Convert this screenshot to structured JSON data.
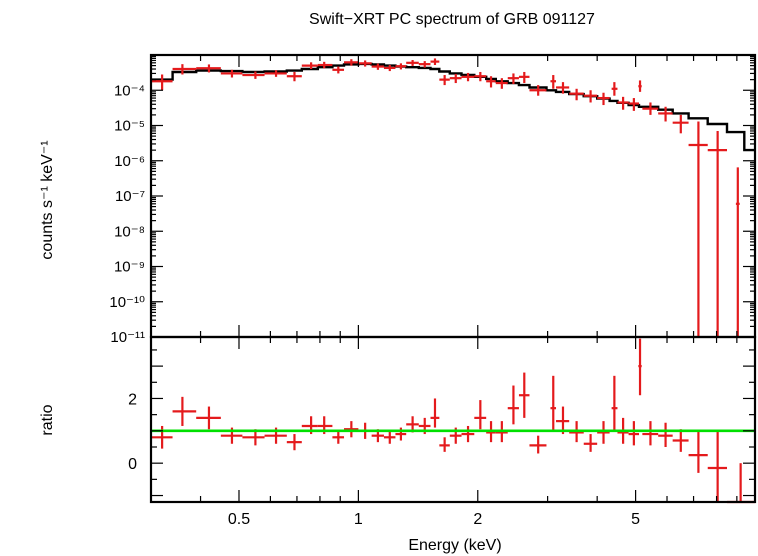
{
  "chart_data": [
    {
      "type": "scatter",
      "title": "Swift−XRT PC spectrum of GRB 091127",
      "ylabel": "counts s⁻¹ keV⁻¹",
      "xlabel": "",
      "x_scale": "log",
      "y_scale": "log",
      "xlim": [
        0.3,
        10.0
      ],
      "ylim": [
        1e-11,
        0.001
      ],
      "grid": false,
      "y_tick_labels": [
        "10⁻¹¹",
        "10⁻¹⁰",
        "10⁻⁹",
        "10⁻⁸",
        "10⁻⁷",
        "10⁻⁶",
        "10⁻⁵",
        "10⁻⁴"
      ],
      "colors": {
        "data": "#e41a1c",
        "model": "#000000"
      },
      "series": [
        {
          "points": [
            {
              "x": 0.32,
              "xlo": 0.3,
              "xhi": 0.34,
              "y": 0.00018,
              "ylo": 0.0001,
              "yhi": 0.00028
            },
            {
              "x": 0.36,
              "xlo": 0.34,
              "xhi": 0.39,
              "y": 0.0004,
              "ylo": 0.00028,
              "yhi": 0.00055
            },
            {
              "x": 0.42,
              "xlo": 0.39,
              "xhi": 0.45,
              "y": 0.00042,
              "ylo": 0.00032,
              "yhi": 0.00054
            },
            {
              "x": 0.48,
              "xlo": 0.45,
              "xhi": 0.51,
              "y": 0.0003,
              "ylo": 0.00023,
              "yhi": 0.00038
            },
            {
              "x": 0.55,
              "xlo": 0.51,
              "xhi": 0.58,
              "y": 0.00027,
              "ylo": 0.00021,
              "yhi": 0.00034
            },
            {
              "x": 0.62,
              "xlo": 0.58,
              "xhi": 0.66,
              "y": 0.0003,
              "ylo": 0.00024,
              "yhi": 0.00037
            },
            {
              "x": 0.69,
              "xlo": 0.66,
              "xhi": 0.72,
              "y": 0.00025,
              "ylo": 0.00018,
              "yhi": 0.00033
            },
            {
              "x": 0.76,
              "xlo": 0.72,
              "xhi": 0.79,
              "y": 0.0005,
              "ylo": 0.0004,
              "yhi": 0.00062
            },
            {
              "x": 0.82,
              "xlo": 0.79,
              "xhi": 0.86,
              "y": 0.00052,
              "ylo": 0.00042,
              "yhi": 0.00064
            },
            {
              "x": 0.89,
              "xlo": 0.86,
              "xhi": 0.92,
              "y": 0.00038,
              "ylo": 0.0003,
              "yhi": 0.00047
            },
            {
              "x": 0.96,
              "xlo": 0.92,
              "xhi": 1.0,
              "y": 0.00062,
              "ylo": 0.0005,
              "yhi": 0.00076
            },
            {
              "x": 1.04,
              "xlo": 1.0,
              "xhi": 1.08,
              "y": 0.00058,
              "ylo": 0.00047,
              "yhi": 0.0007
            },
            {
              "x": 1.12,
              "xlo": 1.08,
              "xhi": 1.16,
              "y": 0.00047,
              "ylo": 0.00038,
              "yhi": 0.00057
            },
            {
              "x": 1.2,
              "xlo": 1.16,
              "xhi": 1.24,
              "y": 0.00043,
              "ylo": 0.00035,
              "yhi": 0.00052
            },
            {
              "x": 1.28,
              "xlo": 1.24,
              "xhi": 1.32,
              "y": 0.00048,
              "ylo": 0.00039,
              "yhi": 0.00058
            },
            {
              "x": 1.37,
              "xlo": 1.32,
              "xhi": 1.42,
              "y": 0.0006,
              "ylo": 0.00049,
              "yhi": 0.00072
            },
            {
              "x": 1.47,
              "xlo": 1.42,
              "xhi": 1.52,
              "y": 0.00055,
              "ylo": 0.00044,
              "yhi": 0.00067
            },
            {
              "x": 1.56,
              "xlo": 1.52,
              "xhi": 1.6,
              "y": 0.00065,
              "ylo": 0.00052,
              "yhi": 0.0008
            },
            {
              "x": 1.65,
              "xlo": 1.6,
              "xhi": 1.7,
              "y": 0.0002,
              "ylo": 0.00014,
              "yhi": 0.00027
            },
            {
              "x": 1.76,
              "xlo": 1.7,
              "xhi": 1.82,
              "y": 0.00022,
              "ylo": 0.00016,
              "yhi": 0.00029
            },
            {
              "x": 1.89,
              "xlo": 1.82,
              "xhi": 1.96,
              "y": 0.00024,
              "ylo": 0.00018,
              "yhi": 0.00031
            },
            {
              "x": 2.03,
              "xlo": 1.96,
              "xhi": 2.1,
              "y": 0.00025,
              "ylo": 0.00018,
              "yhi": 0.00033
            },
            {
              "x": 2.16,
              "xlo": 2.1,
              "xhi": 2.22,
              "y": 0.00018,
              "ylo": 0.00012,
              "yhi": 0.00025
            },
            {
              "x": 2.3,
              "xlo": 2.22,
              "xhi": 2.38,
              "y": 0.00016,
              "ylo": 0.00011,
              "yhi": 0.00022
            },
            {
              "x": 2.46,
              "xlo": 2.38,
              "xhi": 2.54,
              "y": 0.00022,
              "ylo": 0.00015,
              "yhi": 0.0003
            },
            {
              "x": 2.62,
              "xlo": 2.54,
              "xhi": 2.7,
              "y": 0.00024,
              "ylo": 0.00016,
              "yhi": 0.00033
            },
            {
              "x": 2.84,
              "xlo": 2.7,
              "xhi": 2.98,
              "y": 0.0001,
              "ylo": 7e-05,
              "yhi": 0.00014
            },
            {
              "x": 3.1,
              "xlo": 3.05,
              "xhi": 3.15,
              "y": 0.00018,
              "ylo": 0.00011,
              "yhi": 0.00027
            },
            {
              "x": 3.28,
              "xlo": 3.15,
              "xhi": 3.4,
              "y": 0.00012,
              "ylo": 8e-05,
              "yhi": 0.00017
            },
            {
              "x": 3.55,
              "xlo": 3.4,
              "xhi": 3.7,
              "y": 8e-05,
              "ylo": 5.2e-05,
              "yhi": 0.00011
            },
            {
              "x": 3.85,
              "xlo": 3.7,
              "xhi": 4.0,
              "y": 7e-05,
              "ylo": 4.5e-05,
              "yhi": 0.0001
            },
            {
              "x": 4.15,
              "xlo": 4.0,
              "xhi": 4.3,
              "y": 6e-05,
              "ylo": 3.8e-05,
              "yhi": 8.5e-05
            },
            {
              "x": 4.42,
              "xlo": 4.35,
              "xhi": 4.5,
              "y": 0.00011,
              "ylo": 7e-05,
              "yhi": 0.00017
            },
            {
              "x": 4.65,
              "xlo": 4.5,
              "xhi": 4.8,
              "y": 4.5e-05,
              "ylo": 2.8e-05,
              "yhi": 6.5e-05
            },
            {
              "x": 4.95,
              "xlo": 4.8,
              "xhi": 5.1,
              "y": 4.2e-05,
              "ylo": 2.6e-05,
              "yhi": 6e-05
            },
            {
              "x": 5.13,
              "xlo": 5.08,
              "xhi": 5.18,
              "y": 0.00013,
              "ylo": 9e-05,
              "yhi": 0.00019
            },
            {
              "x": 5.45,
              "xlo": 5.2,
              "xhi": 5.7,
              "y": 3e-05,
              "ylo": 2e-05,
              "yhi": 4.5e-05
            },
            {
              "x": 5.95,
              "xlo": 5.7,
              "xhi": 6.2,
              "y": 2.2e-05,
              "ylo": 1.3e-05,
              "yhi": 3.4e-05
            },
            {
              "x": 6.5,
              "xlo": 6.2,
              "xhi": 6.8,
              "y": 1.2e-05,
              "ylo": 6e-06,
              "yhi": 2e-05
            },
            {
              "x": 7.2,
              "xlo": 6.8,
              "xhi": 7.6,
              "y": 2.8e-06,
              "ylo": 1e-11,
              "yhi": 1.3e-05
            },
            {
              "x": 8.05,
              "xlo": 7.6,
              "xhi": 8.5,
              "y": 2e-06,
              "ylo": 1e-11,
              "yhi": 7e-06
            },
            {
              "x": 9.05,
              "xlo": 8.95,
              "xhi": 9.15,
              "y": 6e-08,
              "ylo": 1e-11,
              "yhi": 6.5e-07
            }
          ]
        }
      ],
      "model_steps": [
        [
          0.3,
          0.0002
        ],
        [
          0.34,
          0.00033
        ],
        [
          0.39,
          0.00036
        ],
        [
          0.45,
          0.00035
        ],
        [
          0.51,
          0.00033
        ],
        [
          0.58,
          0.00034
        ],
        [
          0.66,
          0.00036
        ],
        [
          0.72,
          0.0004
        ],
        [
          0.79,
          0.00045
        ],
        [
          0.86,
          0.0005
        ],
        [
          0.92,
          0.00054
        ],
        [
          1.0,
          0.00056
        ],
        [
          1.08,
          0.00054
        ],
        [
          1.16,
          0.0005
        ],
        [
          1.24,
          0.00047
        ],
        [
          1.32,
          0.00045
        ],
        [
          1.42,
          0.00043
        ],
        [
          1.52,
          0.0004
        ],
        [
          1.6,
          0.00034
        ],
        [
          1.7,
          0.0003
        ],
        [
          1.82,
          0.00027
        ],
        [
          1.96,
          0.00024
        ],
        [
          2.1,
          0.00021
        ],
        [
          2.22,
          0.00018
        ],
        [
          2.38,
          0.00016
        ],
        [
          2.54,
          0.00014
        ],
        [
          2.7,
          0.00012
        ],
        [
          2.98,
          0.0001
        ],
        [
          3.15,
          9e-05
        ],
        [
          3.4,
          7.8e-05
        ],
        [
          3.7,
          6.8e-05
        ],
        [
          4.0,
          5.8e-05
        ],
        [
          4.3,
          5e-05
        ],
        [
          4.5,
          4.4e-05
        ],
        [
          4.8,
          3.8e-05
        ],
        [
          5.1,
          3.4e-05
        ],
        [
          5.7,
          2.8e-05
        ],
        [
          6.2,
          2.2e-05
        ],
        [
          6.8,
          1.6e-05
        ],
        [
          7.6,
          1.1e-05
        ],
        [
          8.5,
          6.5e-06
        ],
        [
          9.4,
          2e-06
        ],
        [
          10.0,
          2e-06
        ]
      ]
    },
    {
      "type": "scatter",
      "xlabel": "Energy (keV)",
      "ylabel": "ratio",
      "x_scale": "log",
      "xlim": [
        0.3,
        10.0
      ],
      "ylim": [
        -1.2,
        3.9
      ],
      "x_tick_labels": [
        "0.5",
        "1",
        "2",
        "5"
      ],
      "y_tick_labels": [
        "0",
        "2"
      ],
      "reference_line": {
        "y": 1.0,
        "color": "#00e000"
      },
      "colors": {
        "data": "#e41a1c"
      },
      "series": [
        {
          "points": [
            {
              "x": 0.32,
              "xlo": 0.3,
              "xhi": 0.34,
              "y": 0.8,
              "ylo": 0.45,
              "yhi": 1.15
            },
            {
              "x": 0.36,
              "xlo": 0.34,
              "xhi": 0.39,
              "y": 1.6,
              "ylo": 1.15,
              "yhi": 2.05
            },
            {
              "x": 0.42,
              "xlo": 0.39,
              "xhi": 0.45,
              "y": 1.4,
              "ylo": 1.05,
              "yhi": 1.75
            },
            {
              "x": 0.48,
              "xlo": 0.45,
              "xhi": 0.51,
              "y": 0.85,
              "ylo": 0.6,
              "yhi": 1.1
            },
            {
              "x": 0.55,
              "xlo": 0.51,
              "xhi": 0.58,
              "y": 0.8,
              "ylo": 0.55,
              "yhi": 1.05
            },
            {
              "x": 0.62,
              "xlo": 0.58,
              "xhi": 0.66,
              "y": 0.85,
              "ylo": 0.6,
              "yhi": 1.1
            },
            {
              "x": 0.69,
              "xlo": 0.66,
              "xhi": 0.72,
              "y": 0.65,
              "ylo": 0.4,
              "yhi": 0.9
            },
            {
              "x": 0.76,
              "xlo": 0.72,
              "xhi": 0.79,
              "y": 1.15,
              "ylo": 0.9,
              "yhi": 1.45
            },
            {
              "x": 0.82,
              "xlo": 0.79,
              "xhi": 0.86,
              "y": 1.15,
              "ylo": 0.9,
              "yhi": 1.45
            },
            {
              "x": 0.89,
              "xlo": 0.86,
              "xhi": 0.92,
              "y": 0.8,
              "ylo": 0.6,
              "yhi": 1.0
            },
            {
              "x": 0.96,
              "xlo": 0.92,
              "xhi": 1.0,
              "y": 1.05,
              "ylo": 0.8,
              "yhi": 1.3
            },
            {
              "x": 1.04,
              "xlo": 1.0,
              "xhi": 1.08,
              "y": 1.0,
              "ylo": 0.75,
              "yhi": 1.25
            },
            {
              "x": 1.12,
              "xlo": 1.08,
              "xhi": 1.16,
              "y": 0.85,
              "ylo": 0.65,
              "yhi": 1.05
            },
            {
              "x": 1.2,
              "xlo": 1.16,
              "xhi": 1.24,
              "y": 0.8,
              "ylo": 0.6,
              "yhi": 1.0
            },
            {
              "x": 1.28,
              "xlo": 1.24,
              "xhi": 1.32,
              "y": 0.9,
              "ylo": 0.7,
              "yhi": 1.1
            },
            {
              "x": 1.37,
              "xlo": 1.32,
              "xhi": 1.42,
              "y": 1.2,
              "ylo": 0.95,
              "yhi": 1.45
            },
            {
              "x": 1.47,
              "xlo": 1.42,
              "xhi": 1.52,
              "y": 1.15,
              "ylo": 0.9,
              "yhi": 1.4
            },
            {
              "x": 1.56,
              "xlo": 1.52,
              "xhi": 1.6,
              "y": 1.4,
              "ylo": 1.1,
              "yhi": 2.0
            },
            {
              "x": 1.65,
              "xlo": 1.6,
              "xhi": 1.7,
              "y": 0.55,
              "ylo": 0.35,
              "yhi": 0.8
            },
            {
              "x": 1.76,
              "xlo": 1.7,
              "xhi": 1.82,
              "y": 0.85,
              "ylo": 0.6,
              "yhi": 1.1
            },
            {
              "x": 1.89,
              "xlo": 1.82,
              "xhi": 1.96,
              "y": 0.9,
              "ylo": 0.65,
              "yhi": 1.15
            },
            {
              "x": 2.03,
              "xlo": 1.96,
              "xhi": 2.1,
              "y": 1.4,
              "ylo": 1.05,
              "yhi": 1.95
            },
            {
              "x": 2.16,
              "xlo": 2.1,
              "xhi": 2.22,
              "y": 0.95,
              "ylo": 0.65,
              "yhi": 1.3
            },
            {
              "x": 2.3,
              "xlo": 2.22,
              "xhi": 2.38,
              "y": 0.95,
              "ylo": 0.65,
              "yhi": 1.3
            },
            {
              "x": 2.46,
              "xlo": 2.38,
              "xhi": 2.54,
              "y": 1.7,
              "ylo": 1.2,
              "yhi": 2.4
            },
            {
              "x": 2.62,
              "xlo": 2.54,
              "xhi": 2.7,
              "y": 2.1,
              "ylo": 1.4,
              "yhi": 2.8
            },
            {
              "x": 2.84,
              "xlo": 2.7,
              "xhi": 2.98,
              "y": 0.55,
              "ylo": 0.3,
              "yhi": 0.85
            },
            {
              "x": 3.1,
              "xlo": 3.05,
              "xhi": 3.15,
              "y": 1.7,
              "ylo": 1.0,
              "yhi": 2.7
            },
            {
              "x": 3.28,
              "xlo": 3.15,
              "xhi": 3.4,
              "y": 1.3,
              "ylo": 0.9,
              "yhi": 1.75
            },
            {
              "x": 3.55,
              "xlo": 3.4,
              "xhi": 3.7,
              "y": 0.95,
              "ylo": 0.65,
              "yhi": 1.3
            },
            {
              "x": 3.85,
              "xlo": 3.7,
              "xhi": 4.0,
              "y": 0.6,
              "ylo": 0.35,
              "yhi": 0.9
            },
            {
              "x": 4.15,
              "xlo": 4.0,
              "xhi": 4.3,
              "y": 0.95,
              "ylo": 0.6,
              "yhi": 1.3
            },
            {
              "x": 4.42,
              "xlo": 4.35,
              "xhi": 4.5,
              "y": 1.7,
              "ylo": 1.0,
              "yhi": 2.7
            },
            {
              "x": 4.65,
              "xlo": 4.5,
              "xhi": 4.8,
              "y": 0.95,
              "ylo": 0.6,
              "yhi": 1.4
            },
            {
              "x": 4.95,
              "xlo": 4.8,
              "xhi": 5.1,
              "y": 0.9,
              "ylo": 0.55,
              "yhi": 1.3
            },
            {
              "x": 5.13,
              "xlo": 5.08,
              "xhi": 5.18,
              "y": 3.0,
              "ylo": 2.1,
              "yhi": 3.85
            },
            {
              "x": 5.45,
              "xlo": 5.2,
              "xhi": 5.7,
              "y": 0.9,
              "ylo": 0.55,
              "yhi": 1.3
            },
            {
              "x": 5.95,
              "xlo": 5.7,
              "xhi": 6.2,
              "y": 0.85,
              "ylo": 0.5,
              "yhi": 1.25
            },
            {
              "x": 6.5,
              "xlo": 6.2,
              "xhi": 6.8,
              "y": 0.7,
              "ylo": 0.35,
              "yhi": 1.05
            },
            {
              "x": 7.2,
              "xlo": 6.8,
              "xhi": 7.6,
              "y": 0.25,
              "ylo": -0.3,
              "yhi": 1.0
            },
            {
              "x": 8.05,
              "xlo": 7.6,
              "xhi": 8.5,
              "y": -0.15,
              "ylo": -1.2,
              "yhi": 1.0
            },
            {
              "x": 9.2,
              "xlo": 8.5,
              "xhi": 10.0,
              "y": -1.2,
              "ylo": -1.2,
              "yhi": 0.0
            }
          ]
        }
      ]
    }
  ]
}
